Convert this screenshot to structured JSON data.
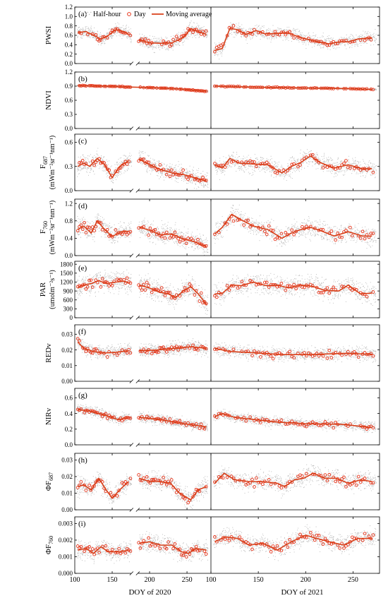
{
  "legend": {
    "halfhour_label": "Half-hour",
    "day_label": "Day",
    "mavg_label": "Moving average"
  },
  "colors": {
    "halfhour": "#b9b9b9",
    "day": "#e8351b",
    "mavg": "#d9401a",
    "axis": "#000000"
  },
  "x_axis_labels": {
    "left": "DOY of 2020",
    "right": "DOY of 2021"
  },
  "chart_data": {
    "type": "scatter",
    "description_series": [
      "Half-hour",
      "Day",
      "Moving average"
    ],
    "x_left": {
      "label": "DOY of 2020",
      "ticks": [
        100,
        150,
        200,
        250
      ],
      "break": [
        175,
        185
      ],
      "range": [
        100,
        282
      ]
    },
    "x_right": {
      "label": "DOY of 2021",
      "ticks": [
        100,
        150,
        200,
        250
      ],
      "range": [
        100,
        278
      ]
    },
    "panels": [
      {
        "letter": "(a)",
        "ylabel_main": "PWSI",
        "ylabel_sub": "",
        "ylabel_line2": "",
        "ylim": [
          0,
          1.2
        ],
        "yticks": [
          "0.0",
          "0.2",
          "0.4",
          "0.6",
          "0.8",
          "1.0",
          "1.2"
        ],
        "ytick_values": [
          0,
          0.2,
          0.4,
          0.6,
          0.8,
          1.0,
          1.2
        ],
        "mavg_left": [
          [
            104,
            0.66
          ],
          [
            115,
            0.68
          ],
          [
            125,
            0.6
          ],
          [
            135,
            0.52
          ],
          [
            145,
            0.6
          ],
          [
            155,
            0.72
          ],
          [
            165,
            0.68
          ],
          [
            172,
            0.62
          ],
          [
            186,
            0.5
          ],
          [
            200,
            0.44
          ],
          [
            215,
            0.43
          ],
          [
            230,
            0.44
          ],
          [
            245,
            0.55
          ],
          [
            255,
            0.74
          ],
          [
            265,
            0.68
          ],
          [
            276,
            0.62
          ]
        ],
        "mavg_right": [
          [
            104,
            0.28
          ],
          [
            112,
            0.32
          ],
          [
            120,
            0.75
          ],
          [
            128,
            0.72
          ],
          [
            137,
            0.62
          ],
          [
            148,
            0.7
          ],
          [
            157,
            0.63
          ],
          [
            170,
            0.64
          ],
          [
            180,
            0.66
          ],
          [
            195,
            0.55
          ],
          [
            205,
            0.5
          ],
          [
            215,
            0.45
          ],
          [
            225,
            0.42
          ],
          [
            235,
            0.46
          ],
          [
            245,
            0.46
          ],
          [
            255,
            0.52
          ],
          [
            270,
            0.55
          ]
        ],
        "noise": 0.13
      },
      {
        "letter": "(b)",
        "ylabel_main": "NDVI",
        "ylabel_sub": "",
        "ylabel_line2": "",
        "ylim": [
          0,
          1.2
        ],
        "yticks": [
          "0.0",
          "0.3",
          "0.6",
          "0.9",
          "1.2"
        ],
        "ytick_values": [
          0,
          0.3,
          0.6,
          0.9,
          1.2
        ],
        "mavg_left": [
          [
            104,
            0.91
          ],
          [
            140,
            0.9
          ],
          [
            175,
            0.88
          ],
          [
            200,
            0.87
          ],
          [
            240,
            0.84
          ],
          [
            276,
            0.79
          ]
        ],
        "mavg_right": [
          [
            104,
            0.9
          ],
          [
            140,
            0.88
          ],
          [
            200,
            0.86
          ],
          [
            240,
            0.85
          ],
          [
            270,
            0.83
          ]
        ],
        "noise": 0.015
      },
      {
        "letter": "(c)",
        "ylabel_main": "F",
        "ylabel_sub": "687",
        "ylabel_line2": "(mWm⁻²sr⁻¹nm⁻¹)",
        "ylim": [
          0,
          0.7
        ],
        "yticks": [
          "0.0",
          "0.3",
          "0.6"
        ],
        "ytick_values": [
          0,
          0.3,
          0.6
        ],
        "mavg_left": [
          [
            104,
            0.3
          ],
          [
            112,
            0.34
          ],
          [
            120,
            0.3
          ],
          [
            130,
            0.4
          ],
          [
            140,
            0.32
          ],
          [
            150,
            0.16
          ],
          [
            160,
            0.3
          ],
          [
            172,
            0.37
          ],
          [
            186,
            0.39
          ],
          [
            200,
            0.32
          ],
          [
            215,
            0.26
          ],
          [
            230,
            0.22
          ],
          [
            245,
            0.2
          ],
          [
            260,
            0.16
          ],
          [
            276,
            0.12
          ]
        ],
        "mavg_right": [
          [
            104,
            0.32
          ],
          [
            112,
            0.28
          ],
          [
            120,
            0.4
          ],
          [
            130,
            0.34
          ],
          [
            145,
            0.33
          ],
          [
            160,
            0.32
          ],
          [
            175,
            0.22
          ],
          [
            185,
            0.3
          ],
          [
            195,
            0.35
          ],
          [
            205,
            0.43
          ],
          [
            215,
            0.35
          ],
          [
            230,
            0.28
          ],
          [
            245,
            0.32
          ],
          [
            260,
            0.27
          ],
          [
            270,
            0.27
          ]
        ],
        "noise": 0.1
      },
      {
        "letter": "(d)",
        "ylabel_main": "F",
        "ylabel_sub": "760",
        "ylabel_line2": "(mWm⁻²sr⁻¹nm⁻¹)",
        "ylim": [
          0,
          1.3
        ],
        "yticks": [
          "0.0",
          "0.4",
          "0.8",
          "1.2"
        ],
        "ytick_values": [
          0,
          0.4,
          0.8,
          1.2
        ],
        "mavg_left": [
          [
            104,
            0.6
          ],
          [
            112,
            0.68
          ],
          [
            122,
            0.52
          ],
          [
            130,
            0.8
          ],
          [
            140,
            0.6
          ],
          [
            150,
            0.44
          ],
          [
            162,
            0.55
          ],
          [
            172,
            0.56
          ],
          [
            186,
            0.66
          ],
          [
            200,
            0.58
          ],
          [
            215,
            0.48
          ],
          [
            230,
            0.5
          ],
          [
            245,
            0.38
          ],
          [
            260,
            0.32
          ],
          [
            276,
            0.2
          ]
        ],
        "mavg_right": [
          [
            104,
            0.5
          ],
          [
            112,
            0.65
          ],
          [
            122,
            0.95
          ],
          [
            132,
            0.82
          ],
          [
            145,
            0.68
          ],
          [
            160,
            0.6
          ],
          [
            175,
            0.4
          ],
          [
            185,
            0.52
          ],
          [
            195,
            0.6
          ],
          [
            205,
            0.65
          ],
          [
            215,
            0.58
          ],
          [
            230,
            0.45
          ],
          [
            245,
            0.55
          ],
          [
            260,
            0.45
          ],
          [
            270,
            0.45
          ]
        ],
        "noise": 0.2
      },
      {
        "letter": "(e)",
        "ylabel_main": "PAR",
        "ylabel_sub": "",
        "ylabel_line2": "(umolm⁻²s⁻¹)",
        "ylim": [
          0,
          1900
        ],
        "yticks": [
          "0",
          "300",
          "600",
          "900",
          "1200",
          "1500",
          "1800"
        ],
        "ytick_values": [
          0,
          300,
          600,
          900,
          1200,
          1500,
          1800
        ],
        "mavg_left": [
          [
            104,
            1000
          ],
          [
            112,
            1100
          ],
          [
            122,
            1150
          ],
          [
            132,
            1250
          ],
          [
            142,
            1150
          ],
          [
            155,
            1200
          ],
          [
            165,
            1230
          ],
          [
            172,
            1180
          ],
          [
            186,
            1100
          ],
          [
            200,
            1000
          ],
          [
            212,
            870
          ],
          [
            225,
            800
          ],
          [
            235,
            680
          ],
          [
            245,
            900
          ],
          [
            255,
            1050
          ],
          [
            265,
            800
          ],
          [
            276,
            450
          ]
        ],
        "mavg_right": [
          [
            104,
            800
          ],
          [
            112,
            820
          ],
          [
            122,
            1100
          ],
          [
            132,
            1080
          ],
          [
            145,
            1200
          ],
          [
            158,
            1080
          ],
          [
            170,
            1100
          ],
          [
            182,
            1000
          ],
          [
            195,
            1100
          ],
          [
            208,
            1050
          ],
          [
            220,
            920
          ],
          [
            235,
            900
          ],
          [
            245,
            1100
          ],
          [
            258,
            800
          ],
          [
            270,
            830
          ]
        ],
        "noise": 320
      },
      {
        "letter": "(f)",
        "ylabel_main": "REDv",
        "ylabel_sub": "",
        "ylabel_line2": "",
        "ylim": [
          0,
          0.036
        ],
        "yticks": [
          "0.00",
          "0.01",
          "0.02",
          "0.03"
        ],
        "ytick_values": [
          0,
          0.01,
          0.02,
          0.03
        ],
        "mavg_left": [
          [
            104,
            0.025
          ],
          [
            112,
            0.021
          ],
          [
            125,
            0.019
          ],
          [
            140,
            0.018
          ],
          [
            155,
            0.0185
          ],
          [
            172,
            0.0195
          ],
          [
            186,
            0.0195
          ],
          [
            210,
            0.02
          ],
          [
            235,
            0.021
          ],
          [
            255,
            0.022
          ],
          [
            276,
            0.021
          ]
        ],
        "mavg_right": [
          [
            104,
            0.021
          ],
          [
            120,
            0.019
          ],
          [
            145,
            0.0182
          ],
          [
            175,
            0.017
          ],
          [
            205,
            0.017
          ],
          [
            240,
            0.0178
          ],
          [
            270,
            0.0172
          ]
        ],
        "noise": 0.004
      },
      {
        "letter": "(g)",
        "ylabel_main": "NIRv",
        "ylabel_sub": "",
        "ylabel_line2": "",
        "ylim": [
          0,
          0.72
        ],
        "yticks": [
          "0.0",
          "0.2",
          "0.4",
          "0.6"
        ],
        "ytick_values": [
          0,
          0.2,
          0.4,
          0.6
        ],
        "mavg_left": [
          [
            104,
            0.45
          ],
          [
            120,
            0.43
          ],
          [
            140,
            0.38
          ],
          [
            158,
            0.32
          ],
          [
            172,
            0.35
          ],
          [
            186,
            0.35
          ],
          [
            215,
            0.32
          ],
          [
            245,
            0.27
          ],
          [
            276,
            0.23
          ]
        ],
        "mavg_right": [
          [
            104,
            0.36
          ],
          [
            112,
            0.4
          ],
          [
            125,
            0.35
          ],
          [
            140,
            0.33
          ],
          [
            170,
            0.29
          ],
          [
            200,
            0.27
          ],
          [
            240,
            0.26
          ],
          [
            270,
            0.22
          ]
        ],
        "noise": 0.06
      },
      {
        "letter": "(h)",
        "ylabel_main": "ΦF",
        "ylabel_sub": "687",
        "ylabel_line2": "",
        "ylim": [
          0,
          0.034
        ],
        "yticks": [
          "0.00",
          "0.01",
          "0.02",
          "0.03"
        ],
        "ytick_values": [
          0,
          0.01,
          0.02,
          0.03
        ],
        "mavg_left": [
          [
            104,
            0.014
          ],
          [
            112,
            0.015
          ],
          [
            122,
            0.012
          ],
          [
            132,
            0.019
          ],
          [
            142,
            0.012
          ],
          [
            150,
            0.007
          ],
          [
            160,
            0.012
          ],
          [
            172,
            0.017
          ],
          [
            186,
            0.019
          ],
          [
            200,
            0.017
          ],
          [
            215,
            0.017
          ],
          [
            228,
            0.016
          ],
          [
            240,
            0.01
          ],
          [
            255,
            0.006
          ],
          [
            265,
            0.012
          ],
          [
            276,
            0.014
          ]
        ],
        "mavg_right": [
          [
            104,
            0.016
          ],
          [
            114,
            0.022
          ],
          [
            125,
            0.018
          ],
          [
            140,
            0.017
          ],
          [
            155,
            0.017
          ],
          [
            170,
            0.016
          ],
          [
            178,
            0.014
          ],
          [
            188,
            0.018
          ],
          [
            198,
            0.019
          ],
          [
            208,
            0.022
          ],
          [
            220,
            0.019
          ],
          [
            232,
            0.019
          ],
          [
            245,
            0.016
          ],
          [
            258,
            0.018
          ],
          [
            270,
            0.017
          ]
        ],
        "noise": 0.005
      },
      {
        "letter": "(i)",
        "ylabel_main": "ΦF",
        "ylabel_sub": "760",
        "ylabel_line2": "",
        "ylim": [
          0,
          0.0034
        ],
        "yticks": [
          "0.000",
          "0.001",
          "0.002",
          "0.003"
        ],
        "ytick_values": [
          0,
          0.001,
          0.002,
          0.003
        ],
        "mavg_left": [
          [
            104,
            0.0014
          ],
          [
            115,
            0.0015
          ],
          [
            125,
            0.0012
          ],
          [
            135,
            0.0016
          ],
          [
            145,
            0.0013
          ],
          [
            160,
            0.0013
          ],
          [
            172,
            0.0014
          ],
          [
            186,
            0.0018
          ],
          [
            200,
            0.0019
          ],
          [
            215,
            0.0017
          ],
          [
            230,
            0.0017
          ],
          [
            242,
            0.0013
          ],
          [
            252,
            0.0012
          ],
          [
            262,
            0.0015
          ],
          [
            276,
            0.0014
          ]
        ],
        "mavg_right": [
          [
            104,
            0.0019
          ],
          [
            115,
            0.0022
          ],
          [
            128,
            0.0021
          ],
          [
            140,
            0.0017
          ],
          [
            155,
            0.0018
          ],
          [
            170,
            0.0014
          ],
          [
            185,
            0.0019
          ],
          [
            200,
            0.0023
          ],
          [
            212,
            0.0021
          ],
          [
            225,
            0.0019
          ],
          [
            240,
            0.0017
          ],
          [
            255,
            0.0021
          ],
          [
            270,
            0.0021
          ]
        ],
        "noise": 0.0005
      }
    ]
  }
}
